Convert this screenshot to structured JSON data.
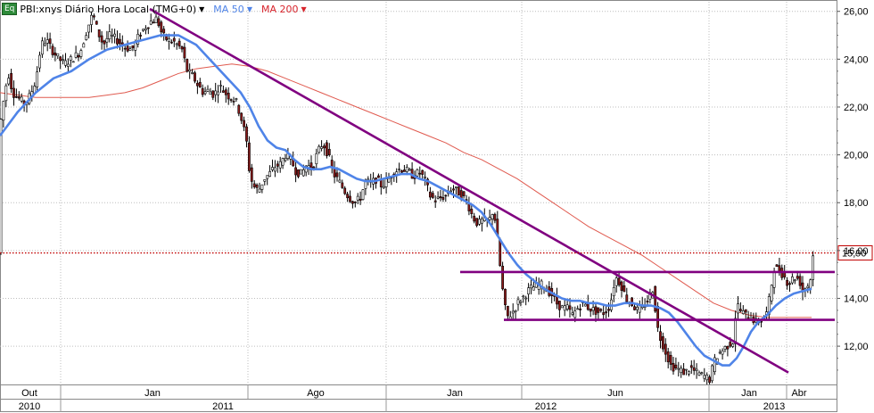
{
  "legend": {
    "badge": "Eq",
    "symbol_label": "PBI:xnys Diário Hora Local (TMG+0)",
    "ma50_label": "MA 50",
    "ma200_label": "MA 200"
  },
  "colors": {
    "candle_up": "#ffffff",
    "candle_down": "#8b1a1a",
    "candle_wick": "#000000",
    "ma50": "#4f84e8",
    "ma200": "#e05a4f",
    "trendline": "#800080",
    "current_price": "#c00000",
    "badge": "#2e8b3a"
  },
  "chart_data": {
    "type": "candlestick",
    "y_axis": {
      "min": 10.4,
      "max": 26.4,
      "ticks": [
        "12,00",
        "14,00",
        "16,00",
        "18,00",
        "20,00",
        "22,00",
        "24,00",
        "26,00"
      ],
      "position": "right"
    },
    "x_axis": {
      "months": [
        "Out",
        "Jan",
        "Ago",
        "Jan",
        "Jun",
        "Jan",
        "Abr"
      ],
      "years": [
        "2010",
        "2011",
        "2012",
        "2013"
      ]
    },
    "current_price": {
      "value": 15.9,
      "label": "15,90"
    },
    "close_path": [
      [
        0,
        21.2
      ],
      [
        6,
        22.8
      ],
      [
        10,
        23.4
      ],
      [
        14,
        22.6
      ],
      [
        20,
        22.4
      ],
      [
        28,
        22.1
      ],
      [
        34,
        22.5
      ],
      [
        40,
        23.1
      ],
      [
        46,
        24.6
      ],
      [
        52,
        24.8
      ],
      [
        58,
        24.4
      ],
      [
        64,
        24.1
      ],
      [
        72,
        23.8
      ],
      [
        80,
        24.0
      ],
      [
        90,
        24.3
      ],
      [
        98,
        25.3
      ],
      [
        104,
        25.9
      ],
      [
        110,
        25.1
      ],
      [
        116,
        24.6
      ],
      [
        122,
        25.0
      ],
      [
        128,
        24.9
      ],
      [
        134,
        24.7
      ],
      [
        140,
        24.5
      ],
      [
        148,
        24.4
      ],
      [
        156,
        25.0
      ],
      [
        164,
        25.4
      ],
      [
        170,
        25.6
      ],
      [
        176,
        25.7
      ],
      [
        182,
        25.0
      ],
      [
        188,
        24.8
      ],
      [
        196,
        24.7
      ],
      [
        204,
        24.4
      ],
      [
        210,
        23.5
      ],
      [
        216,
        23.3
      ],
      [
        222,
        22.9
      ],
      [
        228,
        22.6
      ],
      [
        234,
        22.7
      ],
      [
        240,
        22.5
      ],
      [
        246,
        22.9
      ],
      [
        252,
        22.6
      ],
      [
        258,
        22.4
      ],
      [
        264,
        22.3
      ],
      [
        270,
        21.6
      ],
      [
        276,
        20.7
      ],
      [
        280,
        19.2
      ],
      [
        284,
        18.7
      ],
      [
        290,
        18.5
      ],
      [
        296,
        19.0
      ],
      [
        302,
        19.2
      ],
      [
        308,
        19.5
      ],
      [
        314,
        19.6
      ],
      [
        320,
        20.0
      ],
      [
        326,
        19.8
      ],
      [
        332,
        19.3
      ],
      [
        338,
        19.2
      ],
      [
        344,
        19.6
      ],
      [
        350,
        19.4
      ],
      [
        356,
        20.1
      ],
      [
        362,
        20.5
      ],
      [
        368,
        20.0
      ],
      [
        374,
        19.2
      ],
      [
        380,
        18.9
      ],
      [
        386,
        18.5
      ],
      [
        392,
        18.2
      ],
      [
        398,
        18.0
      ],
      [
        404,
        18.2
      ],
      [
        410,
        18.9
      ],
      [
        416,
        18.8
      ],
      [
        422,
        19.0
      ],
      [
        428,
        18.7
      ],
      [
        434,
        18.9
      ],
      [
        440,
        19.2
      ],
      [
        446,
        19.4
      ],
      [
        452,
        19.4
      ],
      [
        458,
        19.3
      ],
      [
        464,
        19.1
      ],
      [
        470,
        19.3
      ],
      [
        476,
        19.0
      ],
      [
        482,
        18.3
      ],
      [
        488,
        18.1
      ],
      [
        494,
        18.2
      ],
      [
        500,
        18.3
      ],
      [
        506,
        18.6
      ],
      [
        512,
        18.5
      ],
      [
        518,
        18.3
      ],
      [
        524,
        18.0
      ],
      [
        530,
        17.4
      ],
      [
        536,
        17.1
      ],
      [
        542,
        17.3
      ],
      [
        548,
        17.2
      ],
      [
        552,
        17.6
      ],
      [
        556,
        17.2
      ],
      [
        560,
        15.6
      ],
      [
        564,
        14.2
      ],
      [
        568,
        13.2
      ],
      [
        572,
        13.3
      ],
      [
        576,
        13.5
      ],
      [
        582,
        13.9
      ],
      [
        588,
        14.1
      ],
      [
        594,
        14.4
      ],
      [
        600,
        14.5
      ],
      [
        606,
        14.6
      ],
      [
        612,
        14.4
      ],
      [
        618,
        14.2
      ],
      [
        624,
        13.8
      ],
      [
        630,
        13.6
      ],
      [
        636,
        13.6
      ],
      [
        642,
        13.3
      ],
      [
        648,
        13.6
      ],
      [
        654,
        13.8
      ],
      [
        660,
        13.6
      ],
      [
        666,
        13.5
      ],
      [
        672,
        13.4
      ],
      [
        678,
        13.4
      ],
      [
        684,
        13.7
      ],
      [
        690,
        14.9
      ],
      [
        696,
        14.6
      ],
      [
        702,
        14.0
      ],
      [
        708,
        13.8
      ],
      [
        714,
        13.5
      ],
      [
        720,
        13.6
      ],
      [
        726,
        13.9
      ],
      [
        732,
        14.4
      ],
      [
        738,
        12.6
      ],
      [
        744,
        12.0
      ],
      [
        748,
        11.6
      ],
      [
        752,
        11.2
      ],
      [
        756,
        11.1
      ],
      [
        762,
        11.0
      ],
      [
        768,
        10.9
      ],
      [
        774,
        11.1
      ],
      [
        780,
        10.9
      ],
      [
        786,
        10.8
      ],
      [
        792,
        10.7
      ],
      [
        796,
        10.6
      ],
      [
        800,
        11.3
      ],
      [
        806,
        11.7
      ],
      [
        812,
        11.9
      ],
      [
        818,
        12.1
      ],
      [
        822,
        12.2
      ],
      [
        826,
        13.8
      ],
      [
        830,
        13.5
      ],
      [
        836,
        13.3
      ],
      [
        842,
        13.2
      ],
      [
        848,
        13.0
      ],
      [
        854,
        13.1
      ],
      [
        860,
        13.4
      ],
      [
        864,
        14.3
      ],
      [
        868,
        15.3
      ],
      [
        872,
        15.2
      ],
      [
        878,
        15.0
      ],
      [
        884,
        14.6
      ],
      [
        890,
        14.9
      ],
      [
        896,
        14.8
      ],
      [
        900,
        14.3
      ],
      [
        904,
        14.5
      ],
      [
        908,
        14.6
      ],
      [
        912,
        15.9
      ]
    ],
    "ma50_path": [
      [
        0,
        20.8
      ],
      [
        20,
        21.8
      ],
      [
        40,
        22.6
      ],
      [
        60,
        23.2
      ],
      [
        80,
        23.5
      ],
      [
        100,
        24.0
      ],
      [
        120,
        24.4
      ],
      [
        140,
        24.6
      ],
      [
        160,
        24.8
      ],
      [
        180,
        25.0
      ],
      [
        200,
        25.0
      ],
      [
        220,
        24.6
      ],
      [
        240,
        23.8
      ],
      [
        260,
        23.0
      ],
      [
        270,
        22.6
      ],
      [
        280,
        22.0
      ],
      [
        290,
        21.2
      ],
      [
        300,
        20.6
      ],
      [
        310,
        20.3
      ],
      [
        320,
        20.2
      ],
      [
        330,
        19.8
      ],
      [
        340,
        19.5
      ],
      [
        350,
        19.4
      ],
      [
        360,
        19.4
      ],
      [
        370,
        19.5
      ],
      [
        380,
        19.4
      ],
      [
        390,
        19.2
      ],
      [
        400,
        19.0
      ],
      [
        410,
        18.9
      ],
      [
        420,
        18.9
      ],
      [
        430,
        19.0
      ],
      [
        440,
        19.1
      ],
      [
        450,
        19.2
      ],
      [
        460,
        19.2
      ],
      [
        470,
        19.0
      ],
      [
        480,
        18.9
      ],
      [
        490,
        18.7
      ],
      [
        500,
        18.5
      ],
      [
        510,
        18.3
      ],
      [
        520,
        18.1
      ],
      [
        530,
        17.9
      ],
      [
        540,
        17.6
      ],
      [
        550,
        17.1
      ],
      [
        560,
        16.5
      ],
      [
        570,
        15.9
      ],
      [
        580,
        15.4
      ],
      [
        590,
        15.0
      ],
      [
        600,
        14.7
      ],
      [
        610,
        14.4
      ],
      [
        620,
        14.2
      ],
      [
        630,
        14.0
      ],
      [
        640,
        13.9
      ],
      [
        650,
        13.9
      ],
      [
        660,
        13.8
      ],
      [
        670,
        13.8
      ],
      [
        680,
        13.7
      ],
      [
        690,
        13.7
      ],
      [
        700,
        13.8
      ],
      [
        710,
        13.8
      ],
      [
        720,
        13.7
      ],
      [
        730,
        13.7
      ],
      [
        740,
        13.6
      ],
      [
        750,
        13.4
      ],
      [
        760,
        13.0
      ],
      [
        770,
        12.5
      ],
      [
        780,
        12.0
      ],
      [
        790,
        11.6
      ],
      [
        800,
        11.4
      ],
      [
        810,
        11.2
      ],
      [
        818,
        11.2
      ],
      [
        826,
        11.5
      ],
      [
        834,
        12.0
      ],
      [
        842,
        12.6
      ],
      [
        850,
        13.0
      ],
      [
        860,
        13.3
      ],
      [
        870,
        13.7
      ],
      [
        880,
        14.0
      ],
      [
        890,
        14.2
      ],
      [
        900,
        14.3
      ],
      [
        910,
        14.4
      ]
    ],
    "ma200_path": [
      [
        0,
        22.6
      ],
      [
        20,
        22.5
      ],
      [
        40,
        22.4
      ],
      [
        60,
        22.4
      ],
      [
        80,
        22.4
      ],
      [
        100,
        22.4
      ],
      [
        120,
        22.5
      ],
      [
        140,
        22.6
      ],
      [
        160,
        22.8
      ],
      [
        180,
        23.1
      ],
      [
        200,
        23.4
      ],
      [
        220,
        23.6
      ],
      [
        240,
        23.7
      ],
      [
        260,
        23.8
      ],
      [
        280,
        23.7
      ],
      [
        300,
        23.5
      ],
      [
        320,
        23.2
      ],
      [
        340,
        22.9
      ],
      [
        360,
        22.6
      ],
      [
        380,
        22.3
      ],
      [
        400,
        22.0
      ],
      [
        420,
        21.7
      ],
      [
        440,
        21.4
      ],
      [
        460,
        21.1
      ],
      [
        480,
        20.8
      ],
      [
        500,
        20.5
      ],
      [
        520,
        20.1
      ],
      [
        540,
        19.8
      ],
      [
        560,
        19.4
      ],
      [
        580,
        19.0
      ],
      [
        600,
        18.5
      ],
      [
        620,
        18.0
      ],
      [
        640,
        17.5
      ],
      [
        660,
        17.0
      ],
      [
        680,
        16.6
      ],
      [
        700,
        16.2
      ],
      [
        720,
        15.8
      ],
      [
        740,
        15.3
      ],
      [
        760,
        14.8
      ],
      [
        780,
        14.3
      ],
      [
        800,
        13.8
      ],
      [
        820,
        13.5
      ],
      [
        840,
        13.3
      ],
      [
        860,
        13.2
      ],
      [
        880,
        13.2
      ],
      [
        900,
        13.2
      ],
      [
        910,
        13.2
      ]
    ],
    "trendlines": [
      {
        "from": [
          168,
          26.1
        ],
        "to": [
          884,
          10.9
        ]
      },
      {
        "from": [
          516,
          15.1
        ],
        "to": [
          936,
          15.1
        ]
      },
      {
        "from": [
          565,
          13.1
        ],
        "to": [
          936,
          13.1
        ]
      }
    ]
  }
}
